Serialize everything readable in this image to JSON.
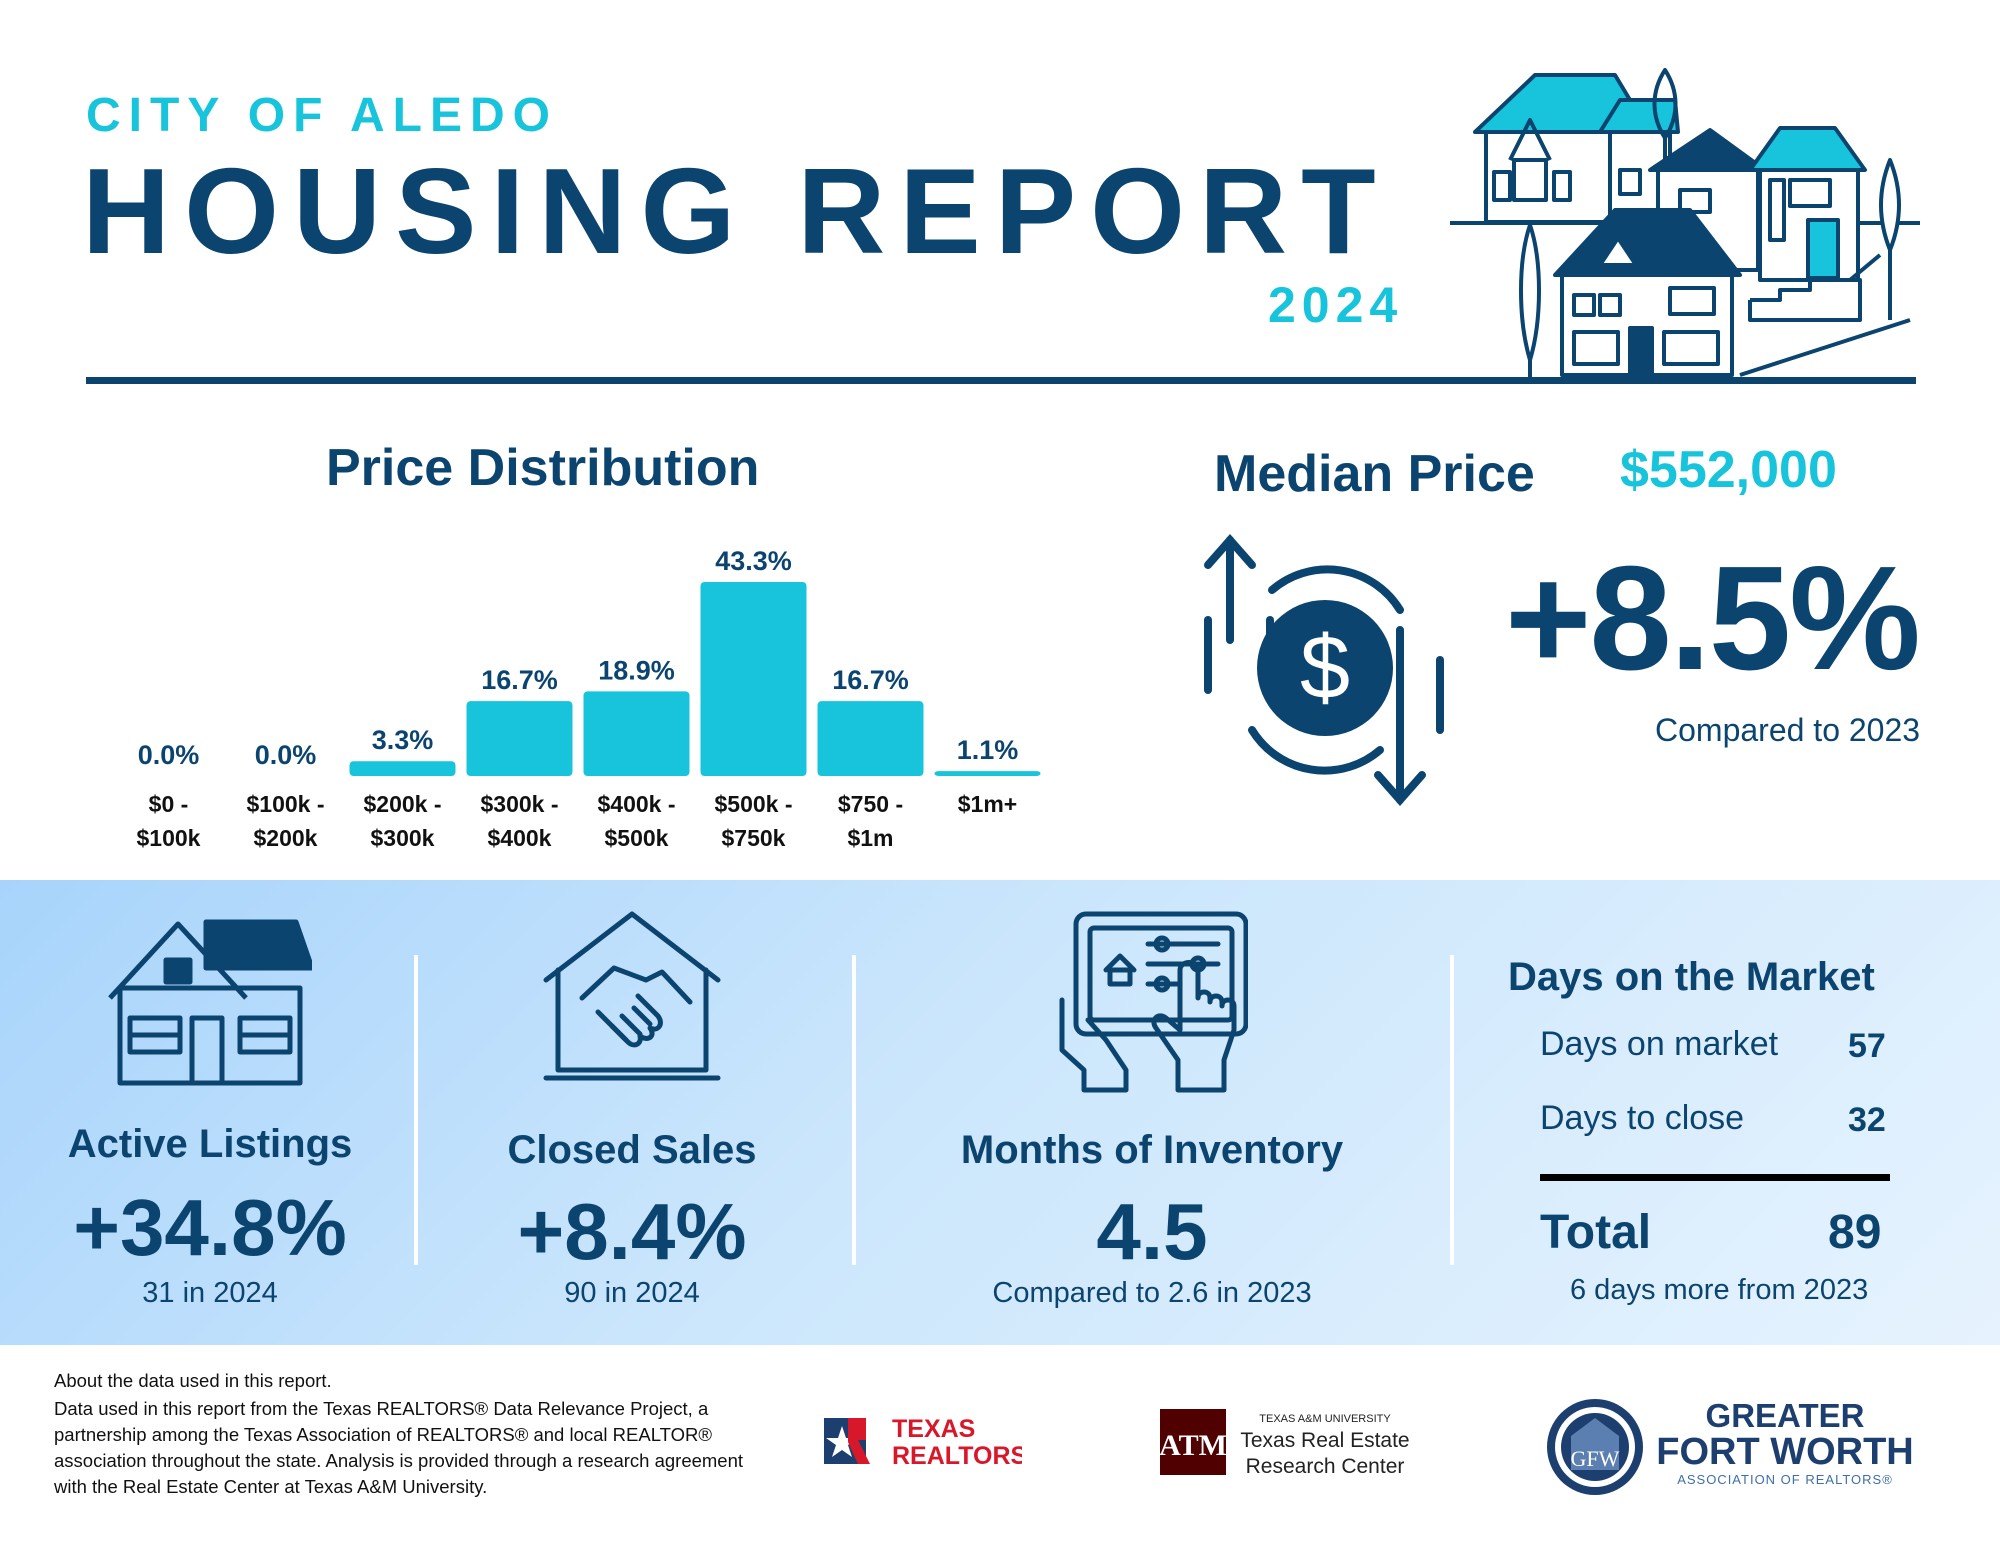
{
  "header": {
    "city": "CITY OF ALEDO",
    "title": "HOUSING REPORT",
    "year": "2024"
  },
  "price_distribution": {
    "title": "Price Distribution"
  },
  "chart_data": {
    "type": "bar",
    "categories": [
      "$0 - $100k",
      "$100k - $200k",
      "$200k - $300k",
      "$300k - $400k",
      "$400k - $500k",
      "$500k - $750k",
      "$750 - $1m",
      "$1m+"
    ],
    "category_lines": [
      [
        "$0 -",
        "$100k"
      ],
      [
        "$100k -",
        "$200k"
      ],
      [
        "$200k -",
        "$300k"
      ],
      [
        "$300k -",
        "$400k"
      ],
      [
        "$400k -",
        "$500k"
      ],
      [
        "$500k -",
        "$750k"
      ],
      [
        "$750 -",
        "$1m"
      ],
      [
        "$1m+",
        ""
      ]
    ],
    "values": [
      0.0,
      0.0,
      3.3,
      16.7,
      18.9,
      43.3,
      16.7,
      1.1
    ],
    "data_labels": [
      "0.0%",
      "0.0%",
      "3.3%",
      "16.7%",
      "18.9%",
      "43.3%",
      "16.7%",
      "1.1%"
    ],
    "title": "Price Distribution",
    "xlabel": "",
    "ylabel": "",
    "ylim": [
      0,
      43.3
    ],
    "grid": false,
    "bar_color": "#17c4dc"
  },
  "median_price": {
    "title": "Median Price",
    "value": "$552,000",
    "change": "+8.5%",
    "compare": "Compared to 2023"
  },
  "metrics": {
    "active_listings": {
      "label": "Active Listings",
      "value": "+34.8%",
      "sub": "31 in 2024"
    },
    "closed_sales": {
      "label": "Closed Sales",
      "value": "+8.4%",
      "sub": "90 in 2024"
    },
    "months_inventory": {
      "label": "Months of Inventory",
      "value": "4.5",
      "sub": "Compared to 2.6 in 2023"
    }
  },
  "days_on_market": {
    "title": "Days on the Market",
    "rows": [
      {
        "label": "Days on market",
        "value": "57"
      },
      {
        "label": "Days to close",
        "value": "32"
      }
    ],
    "total_label": "Total",
    "total_value": "89",
    "note": "6 days more from 2023"
  },
  "footer": {
    "heading": "About the data used in this report.",
    "text": "Data used in this report from the Texas REALTORS® Data Relevance Project, a partnership among the Texas Association of REALTORS® and local REALTOR® association throughout the state. Analysis is provided through a research agreement with the Real Estate Center at Texas A&M University.",
    "logo_texas_realtors": [
      "TEXAS",
      "REALTORS"
    ],
    "logo_tamu": [
      "TEXAS A&M UNIVERSITY",
      "Texas Real Estate",
      "Research Center"
    ],
    "logo_gfw": [
      "GREATER",
      "FORT WORTH",
      "ASSOCIATION OF REALTORS®"
    ]
  },
  "colors": {
    "navy": "#0c4470",
    "cyan": "#17c4dc",
    "band_light": "#cbe6fc"
  },
  "icons": [
    "houses-illustration",
    "dollar-cycle-icon",
    "house-icon",
    "handshake-house-icon",
    "tablet-hands-icon"
  ]
}
